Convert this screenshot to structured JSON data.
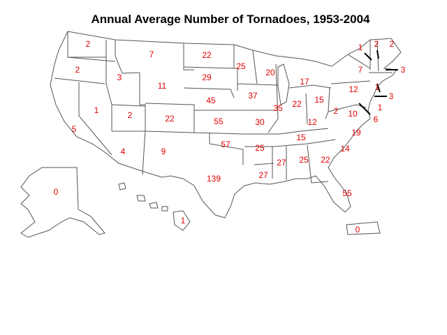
{
  "title": "Annual Average Number of Tornadoes, 1953-2004",
  "label_color": "#e00000",
  "states": [
    {
      "id": "wa",
      "value": "2"
    },
    {
      "id": "or",
      "value": "2"
    },
    {
      "id": "ca",
      "value": "5"
    },
    {
      "id": "nv",
      "value": "1"
    },
    {
      "id": "id",
      "value": "3"
    },
    {
      "id": "mt",
      "value": "7"
    },
    {
      "id": "wy",
      "value": "11"
    },
    {
      "id": "ut",
      "value": "2"
    },
    {
      "id": "az",
      "value": "4"
    },
    {
      "id": "co",
      "value": "22"
    },
    {
      "id": "nm",
      "value": "9"
    },
    {
      "id": "nd",
      "value": "22"
    },
    {
      "id": "sd",
      "value": "29"
    },
    {
      "id": "ne",
      "value": "45"
    },
    {
      "id": "ks",
      "value": "55"
    },
    {
      "id": "ok",
      "value": "57"
    },
    {
      "id": "tx",
      "value": "139"
    },
    {
      "id": "mn",
      "value": "25"
    },
    {
      "id": "ia",
      "value": "37"
    },
    {
      "id": "mo",
      "value": "30"
    },
    {
      "id": "ar",
      "value": "25"
    },
    {
      "id": "la",
      "value": "27"
    },
    {
      "id": "wi",
      "value": "20"
    },
    {
      "id": "il",
      "value": "35"
    },
    {
      "id": "mi",
      "value": "17"
    },
    {
      "id": "in",
      "value": "22"
    },
    {
      "id": "oh",
      "value": "15"
    },
    {
      "id": "ky",
      "value": "12"
    },
    {
      "id": "tn",
      "value": "15"
    },
    {
      "id": "ms",
      "value": "27"
    },
    {
      "id": "al",
      "value": "25"
    },
    {
      "id": "ga",
      "value": "22"
    },
    {
      "id": "fl",
      "value": "55"
    },
    {
      "id": "sc",
      "value": "14"
    },
    {
      "id": "nc",
      "value": "19"
    },
    {
      "id": "va",
      "value": "10"
    },
    {
      "id": "wv",
      "value": "2"
    },
    {
      "id": "pa",
      "value": "12"
    },
    {
      "id": "ny",
      "value": "7"
    },
    {
      "id": "vt",
      "value": "1"
    },
    {
      "id": "nh",
      "value": "2"
    },
    {
      "id": "me",
      "value": "2"
    },
    {
      "id": "ma",
      "value": "3"
    },
    {
      "id": "ct",
      "value": "1"
    },
    {
      "id": "nj",
      "value": "3"
    },
    {
      "id": "de",
      "value": "1"
    },
    {
      "id": "md",
      "value": "6"
    },
    {
      "id": "ak",
      "value": "0"
    },
    {
      "id": "hi",
      "value": "1"
    },
    {
      "id": "pr",
      "value": "0"
    }
  ]
}
